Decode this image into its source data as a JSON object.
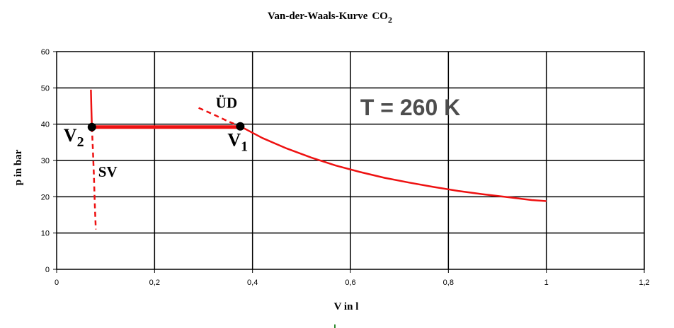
{
  "chart_data": {
    "type": "line",
    "title": "Van-der-Waals-Kurve",
    "title_formula": "CO",
    "title_formula_sub": "2",
    "xlabel": "V in l",
    "ylabel": "p in bar",
    "xlim": [
      0,
      1.2
    ],
    "ylim": [
      0,
      60
    ],
    "x_ticks": [
      0,
      0.2,
      0.4,
      0.6,
      0.8,
      1,
      1.2
    ],
    "x_tick_labels": [
      "0",
      "0,2",
      "0,4",
      "0,6",
      "0,8",
      "1",
      "1,2"
    ],
    "y_ticks": [
      0,
      10,
      20,
      30,
      40,
      50,
      60
    ],
    "y_tick_labels": [
      "0",
      "10",
      "20",
      "30",
      "40",
      "50",
      "60"
    ],
    "grid": true,
    "colors": {
      "curve": "#ee1111",
      "points": "#000000",
      "grid": "#000000"
    },
    "series": [
      {
        "style": "solid",
        "x": [
          0.375,
          0.42,
          0.47,
          0.52,
          0.57,
          0.62,
          0.67,
          0.72,
          0.77,
          0.82,
          0.87,
          0.92,
          0.97,
          1.0
        ],
        "y": [
          39.4,
          36.2,
          33.3,
          30.8,
          28.6,
          26.8,
          25.2,
          23.9,
          22.7,
          21.6,
          20.7,
          19.9,
          19.1,
          18.8
        ]
      },
      {
        "style": "dashed",
        "x": [
          0.29,
          0.32,
          0.35,
          0.375
        ],
        "y": [
          44.5,
          42.7,
          40.8,
          39.4
        ]
      },
      {
        "style": "solid",
        "x": [
          0.07,
          0.071,
          0.072
        ],
        "y": [
          49.5,
          44,
          39.2
        ]
      },
      {
        "style": "dashed",
        "x": [
          0.072,
          0.074,
          0.076,
          0.078,
          0.08
        ],
        "y": [
          39.2,
          33,
          26,
          18,
          11
        ]
      },
      {
        "style": "thick",
        "x": [
          0.072,
          0.375
        ],
        "y": [
          39.2,
          39.2
        ]
      }
    ],
    "points": [
      {
        "label": "V",
        "sub": "2",
        "x": 0.072,
        "y": 39.2
      },
      {
        "label": "V",
        "sub": "1",
        "x": 0.375,
        "y": 39.4
      }
    ],
    "annotations": [
      {
        "text": "ÜD",
        "x": 0.325,
        "y": 44.5
      },
      {
        "text": "SV",
        "x": 0.085,
        "y": 25.5
      },
      {
        "text": "T = 260 K",
        "x": 0.62,
        "y": 42.5
      }
    ]
  }
}
